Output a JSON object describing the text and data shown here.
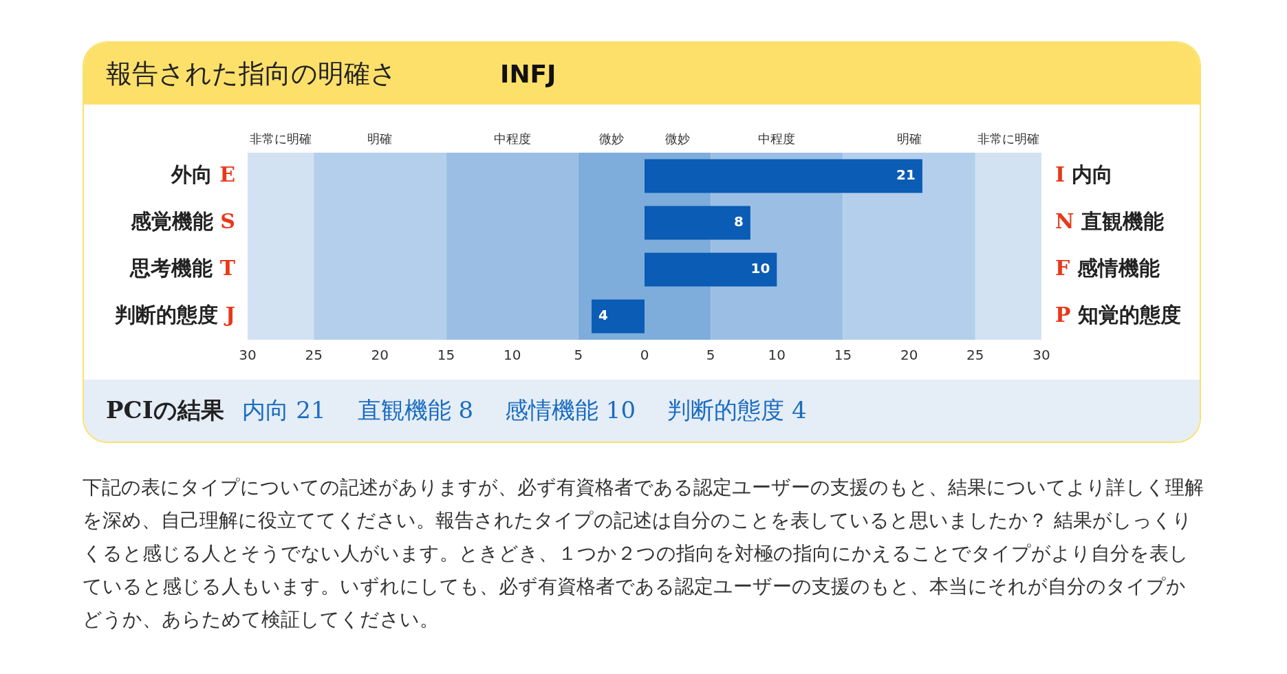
{
  "chart_data": {
    "type": "bar",
    "orientation": "horizontal",
    "title": "報告された指向の明確さ",
    "subtitle": "INFJ",
    "categories": [
      "外向 E",
      "感覚機能 S",
      "思考機能 T",
      "判断的態度 J"
    ],
    "y2_categories": [
      "I 内向",
      "N 直観機能",
      "F 感情機能",
      "P 知覚的態度"
    ],
    "values": [
      21,
      8,
      10,
      4
    ],
    "base": [
      0,
      0,
      0,
      -4
    ],
    "data_labels": true,
    "color": "#0a5cb4",
    "xlim": [
      -30,
      30
    ],
    "xticks": [
      {
        "value": -30,
        "label": "30"
      },
      {
        "value": -25,
        "label": "25"
      },
      {
        "value": -20,
        "label": "20"
      },
      {
        "value": -15,
        "label": "15"
      },
      {
        "value": -10,
        "label": "10"
      },
      {
        "value": -5,
        "label": "5"
      },
      0,
      5,
      10,
      15,
      20,
      25,
      30
    ],
    "bands": [
      {
        "axis": "x",
        "from": -30,
        "to": -25,
        "label": "非常に明確",
        "color": "#d3e2f2"
      },
      {
        "axis": "x",
        "from": -25,
        "to": -15,
        "label": "明確",
        "color": "#b3cfec"
      },
      {
        "axis": "x",
        "from": -15,
        "to": -5,
        "label": "中程度",
        "color": "#9bbfe4"
      },
      {
        "axis": "x",
        "from": -5,
        "to": 0,
        "label": "微妙",
        "color": "#7eaddb"
      },
      {
        "axis": "x",
        "from": 0,
        "to": 5,
        "label": "微妙",
        "color": "#7eaddb"
      },
      {
        "axis": "x",
        "from": 5,
        "to": 15,
        "label": "中程度",
        "color": "#9bbfe4"
      },
      {
        "axis": "x",
        "from": 15,
        "to": 25,
        "label": "明確",
        "color": "#b3cfec"
      },
      {
        "axis": "x",
        "from": 25,
        "to": 30,
        "label": "非常に明確",
        "color": "#d3e2f2"
      }
    ],
    "grid": false,
    "legend": false,
    "annotations": [
      "PCIの結果",
      "内向 21",
      "直観機能 8",
      "感情機能 10",
      "判断的態度 4",
      "下記の表にタイプについての記述がありますが、必ず有資格者である認定ユーザーの支援のもと、結果についてより詳しく理解を深め、自己理解に役立ててください。報告されたタイプの記述は自分のことを表していると思いましたか？ 結果がしっくりくると感じる人とそうでない人がいます。ときどき、１つか２つの指向を対極の指向にかえることでタイプがより自分を表していると感じる人もいます。いずれにしても、必ず有資格者である認定ユーザーの支援のもと、本当にそれが自分のタイプかどうか、あらためて検証してください。"
    ]
  }
}
